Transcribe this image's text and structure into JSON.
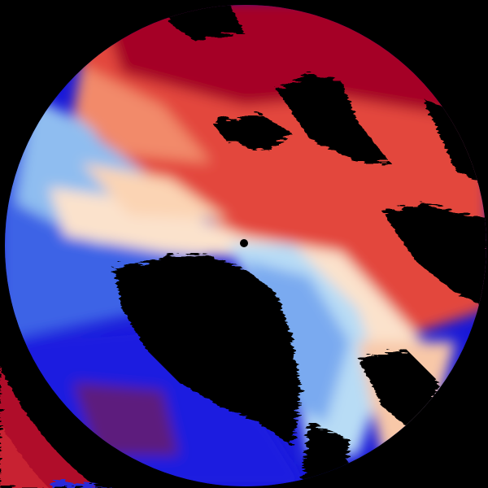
{
  "image": {
    "kind": "radar-velocity-display",
    "colors": {
      "background": "#000000",
      "strong_red": "#a50026",
      "red": "#e8403a",
      "light_red": "#f7a07a",
      "neutral": "#fbe8d8",
      "light_blue": "#b8dcf5",
      "mid_blue": "#4f74e8",
      "strong_blue": "#1a1ae0",
      "radar_site": "#000000"
    }
  }
}
